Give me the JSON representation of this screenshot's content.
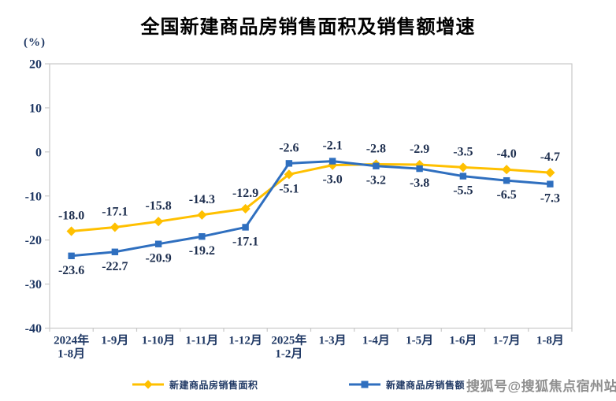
{
  "watermark": "搜狐号@搜狐焦点宿州站",
  "colors": {
    "plot_border": "#C9C9C9",
    "axis_text": "#1F3864",
    "data_label_text": "#1E2F4F",
    "series_area": "#FFC000",
    "series_amount": "#2F6FBF"
  },
  "chart_data": {
    "type": "line",
    "title": "全国新建商品房销售面积及销售额增速",
    "y_axis_unit_label": "(%)",
    "ylim": [
      -40,
      20
    ],
    "yticks": [
      20,
      10,
      0,
      -10,
      -20,
      -30,
      -40
    ],
    "grid": false,
    "legend_position": "bottom",
    "categories": [
      "2024年\n1-8月",
      "1-9月",
      "1-10月",
      "1-11月",
      "1-12月",
      "2025年\n1-2月",
      "1-3月",
      "1-4月",
      "1-5月",
      "1-6月",
      "1-7月",
      "1-8月"
    ],
    "series": [
      {
        "name": "新建商品房销售面积",
        "color": "#FFC000",
        "marker": "diamond",
        "values": [
          -18.0,
          -17.1,
          -15.8,
          -14.3,
          -12.9,
          -5.1,
          -3.0,
          -2.8,
          -2.9,
          -3.5,
          -4.0,
          -4.7
        ]
      },
      {
        "name": "新建商品房销售额",
        "color": "#2F6FBF",
        "marker": "square",
        "values": [
          -23.6,
          -22.7,
          -20.9,
          -19.2,
          -17.1,
          -2.6,
          -2.1,
          -3.2,
          -3.8,
          -5.5,
          -6.5,
          -7.3
        ]
      }
    ]
  }
}
